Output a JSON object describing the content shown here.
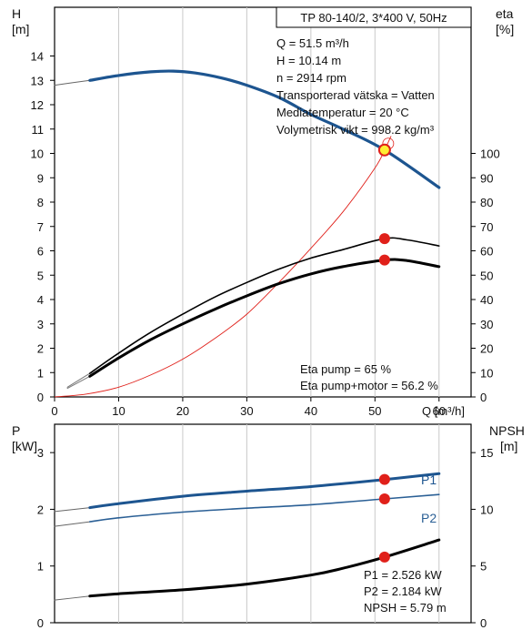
{
  "header": "TP 80-140/2, 3*400 V, 50Hz",
  "top_chart": {
    "left_axis_unit_label": [
      "H",
      "[m]"
    ],
    "right_axis_unit_label": [
      "eta",
      "[%]"
    ],
    "x_axis_label": "Q [m³/h]",
    "info_lines": [
      "Q = 51.5 m³/h",
      "H = 10.14 m",
      "n = 2914 rpm",
      "Transporterad vätska = Vatten",
      "Mediatemperatur = 20 °C",
      "Volymetrisk vikt = 998.2 kg/m³"
    ],
    "eta_lines": [
      "Eta pump = 65 %",
      "Eta pump+motor = 56.2 %"
    ]
  },
  "bottom_chart": {
    "left_axis_unit_label": [
      "P",
      "[kW]"
    ],
    "right_axis_unit_label": [
      "NPSH",
      "[m]"
    ],
    "info_lines": [
      "P1 = 2.526 kW",
      "P2 = 2.184 kW",
      "NPSH = 5.79 m"
    ]
  },
  "colors": {
    "head": "#1d5590",
    "p2": "#2a5f95",
    "black": "#000000",
    "red": "#e0201a",
    "marker_yellow": "#ffee33",
    "grid": "#c9c9c9"
  },
  "chart_data": [
    {
      "type": "line",
      "title": "TP 80-140/2, 3*400 V, 50Hz",
      "xlabel": "Q [m³/h]",
      "ylabel": "H [m]",
      "y2label": "eta [%]",
      "xlim": [
        0,
        65
      ],
      "ylim": [
        0,
        16
      ],
      "y2lim": [
        0,
        160
      ],
      "x_ticks": [
        0,
        10,
        20,
        30,
        40,
        50,
        60
      ],
      "y_ticks": [
        0,
        1,
        2,
        3,
        4,
        5,
        6,
        7,
        8,
        9,
        10,
        11,
        12,
        13,
        14
      ],
      "y2_ticks": [
        0,
        10,
        20,
        30,
        40,
        50,
        60,
        70,
        80,
        90,
        100
      ],
      "series": [
        {
          "axis": "y",
          "role": "head",
          "x": [
            0,
            5.5,
            10,
            15,
            18.5,
            22,
            26,
            30,
            35,
            40,
            45,
            51.5,
            60
          ],
          "y": [
            12.8,
            13.0,
            13.2,
            13.35,
            13.38,
            13.3,
            13.1,
            12.8,
            12.3,
            11.6,
            11.0,
            10.14,
            8.6
          ]
        },
        {
          "axis": "y2",
          "role": "eta pump",
          "x": [
            2,
            5.5,
            10,
            15,
            20,
            25,
            30,
            35,
            40,
            45,
            51.5,
            55,
            60
          ],
          "y": [
            4,
            9.7,
            18,
            26.5,
            34,
            41,
            47,
            52.5,
            57,
            60.5,
            65,
            64.5,
            62
          ]
        },
        {
          "axis": "y2",
          "role": "eta pump+motor",
          "x": [
            2,
            5.5,
            10,
            15,
            20,
            25,
            30,
            35,
            40,
            45,
            51.5,
            55,
            60
          ],
          "y": [
            3.5,
            8.5,
            16,
            23.5,
            30,
            36,
            41.5,
            46.5,
            50.5,
            53.5,
            56.2,
            56,
            53.5
          ]
        },
        {
          "axis": "y",
          "role": "red curve",
          "x": [
            0,
            5,
            10,
            15,
            20,
            25,
            30,
            35,
            40,
            45,
            50,
            51.5,
            52.5
          ],
          "y": [
            0,
            0.12,
            0.4,
            0.9,
            1.55,
            2.4,
            3.4,
            4.7,
            6.1,
            7.6,
            9.4,
            10.14,
            10.7
          ]
        }
      ],
      "points": [
        {
          "axis": "y",
          "x": 51.5,
          "y": 10.14,
          "style": "yellow"
        },
        {
          "axis": "y2",
          "x": 51.5,
          "y": 65,
          "style": "red"
        },
        {
          "axis": "y2",
          "x": 51.5,
          "y": 56.2,
          "style": "red"
        }
      ],
      "annotations": [
        "Q = 51.5 m³/h",
        "H = 10.14 m",
        "n = 2914 rpm",
        "Eta pump = 65 %",
        "Eta pump+motor = 56.2 %"
      ]
    },
    {
      "type": "line",
      "xlabel": "",
      "ylabel": "P [kW]",
      "y2label": "NPSH [m]",
      "xlim": [
        0,
        65
      ],
      "ylim": [
        0,
        3.5
      ],
      "y2lim": [
        0,
        17.5
      ],
      "x_ticks": [
        0,
        10,
        20,
        30,
        40,
        50,
        60
      ],
      "y_ticks": [
        0,
        1,
        2,
        3
      ],
      "y2_ticks": [
        0,
        5,
        10,
        15
      ],
      "series": [
        {
          "axis": "y",
          "name": "P1",
          "x": [
            0,
            5.5,
            10,
            20,
            30,
            40,
            51.5,
            60
          ],
          "y": [
            1.96,
            2.03,
            2.1,
            2.23,
            2.32,
            2.4,
            2.526,
            2.63
          ]
        },
        {
          "axis": "y",
          "name": "P2",
          "x": [
            0,
            5.5,
            10,
            20,
            30,
            40,
            51.5,
            60
          ],
          "y": [
            1.7,
            1.78,
            1.85,
            1.95,
            2.02,
            2.08,
            2.184,
            2.26
          ]
        },
        {
          "axis": "y2",
          "role": "NPSH",
          "x": [
            0,
            5.5,
            10,
            20,
            30,
            40,
            45,
            51.5,
            60
          ],
          "y": [
            2.0,
            2.35,
            2.55,
            2.9,
            3.4,
            4.2,
            4.8,
            5.79,
            7.3
          ]
        }
      ],
      "points": [
        {
          "axis": "y",
          "x": 51.5,
          "y": 2.526,
          "style": "red"
        },
        {
          "axis": "y",
          "x": 51.5,
          "y": 2.184,
          "style": "red"
        },
        {
          "axis": "y2",
          "x": 51.5,
          "y": 5.79,
          "style": "red"
        }
      ],
      "annotations": [
        "P1 = 2.526 kW",
        "P2 = 2.184 kW",
        "NPSH = 5.79 m"
      ]
    }
  ]
}
